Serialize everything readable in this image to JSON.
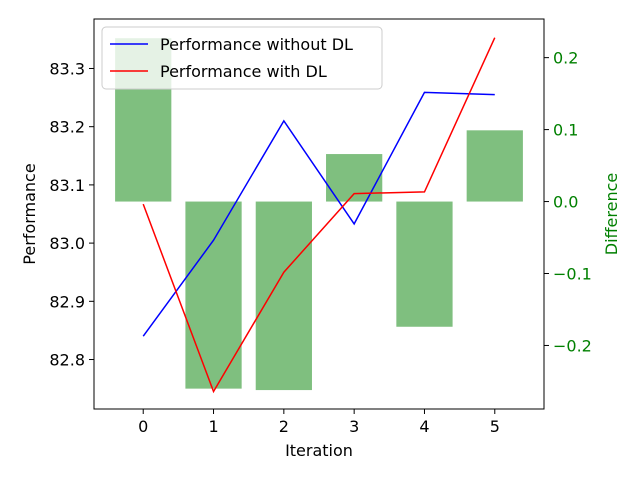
{
  "chart_data": {
    "type": "line+bar",
    "title": "",
    "xlabel": "Iteration",
    "ylabel_left": "Performance",
    "ylabel_right": "Difference",
    "x": [
      0,
      1,
      2,
      3,
      4,
      5
    ],
    "xlim": [
      -0.7,
      5.7
    ],
    "ylim_left": [
      82.715,
      83.385
    ],
    "ylim_right": [
      -0.2883,
      0.2537
    ],
    "x_ticks": [
      "0",
      "1",
      "2",
      "3",
      "4",
      "5"
    ],
    "y_ticks_left": [
      "82.8",
      "82.9",
      "83.0",
      "83.1",
      "83.2",
      "83.3"
    ],
    "y_ticks_right": [
      "−0.2",
      "−0.1",
      "0.0",
      "0.1",
      "0.2"
    ],
    "series": [
      {
        "name": "Performance without DL",
        "axis": "left",
        "kind": "line",
        "color": "#0000ff",
        "values": [
          82.84,
          83.005,
          83.21,
          83.033,
          83.259,
          83.255
        ]
      },
      {
        "name": "Performance with DL",
        "axis": "left",
        "kind": "line",
        "color": "#ff0000",
        "values": [
          83.067,
          82.745,
          82.95,
          83.085,
          83.088,
          83.353
        ]
      },
      {
        "name": "",
        "axis": "right",
        "kind": "bar",
        "color": "#008000",
        "opacity": 0.5,
        "values": [
          0.227,
          -0.26,
          -0.262,
          0.066,
          -0.174,
          0.099
        ]
      }
    ],
    "legend_position": "upper-left",
    "grid": false,
    "right_axis_color": "#008000"
  }
}
